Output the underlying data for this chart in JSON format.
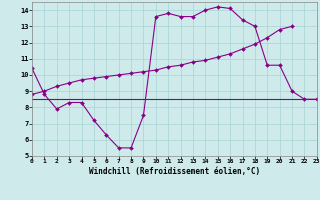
{
  "xlabel": "Windchill (Refroidissement éolien,°C)",
  "xlim": [
    0,
    23
  ],
  "ylim": [
    5,
    14.5
  ],
  "yticks": [
    5,
    6,
    7,
    8,
    9,
    10,
    11,
    12,
    13,
    14
  ],
  "xticks": [
    0,
    1,
    2,
    3,
    4,
    5,
    6,
    7,
    8,
    9,
    10,
    11,
    12,
    13,
    14,
    15,
    16,
    17,
    18,
    19,
    20,
    21,
    22,
    23
  ],
  "bg_color": "#ceeaea",
  "grid_color": "#a8d4d4",
  "line_color": "#880088",
  "line1_x": [
    0,
    1,
    2,
    3,
    4,
    5,
    6,
    7,
    8,
    9,
    10,
    11,
    12,
    13,
    14,
    15,
    16,
    17,
    18,
    19,
    20,
    21,
    22,
    23
  ],
  "line1_y": [
    10.4,
    8.8,
    7.9,
    8.3,
    8.3,
    7.2,
    6.3,
    5.5,
    5.5,
    7.5,
    13.6,
    13.8,
    13.6,
    13.6,
    14.0,
    14.2,
    14.1,
    13.4,
    13.0,
    10.6,
    10.6,
    9.0,
    8.5,
    8.5
  ],
  "line2_x": [
    0,
    1,
    2,
    3,
    4,
    5,
    6,
    7,
    8,
    9,
    10,
    11,
    12,
    13,
    14,
    15,
    16,
    17,
    18,
    19,
    20,
    21,
    22,
    23
  ],
  "line2_y": [
    8.5,
    8.5,
    8.5,
    8.5,
    8.5,
    8.5,
    8.5,
    8.5,
    8.5,
    8.5,
    8.5,
    8.5,
    8.5,
    8.5,
    8.5,
    8.5,
    8.5,
    8.5,
    8.5,
    8.5,
    8.5,
    8.5,
    8.5,
    8.5
  ],
  "line3_x": [
    0,
    1,
    2,
    3,
    4,
    5,
    6,
    7,
    8,
    9,
    10,
    11,
    12,
    13,
    14,
    15,
    16,
    17,
    18,
    19,
    20,
    21,
    22,
    23
  ],
  "line3_y": [
    8.8,
    9.0,
    9.3,
    9.5,
    9.7,
    9.8,
    9.9,
    10.0,
    10.1,
    10.2,
    10.3,
    10.5,
    10.6,
    10.8,
    10.9,
    11.1,
    11.3,
    11.6,
    11.9,
    12.3,
    12.8,
    13.0,
    8.8,
    8.5
  ]
}
